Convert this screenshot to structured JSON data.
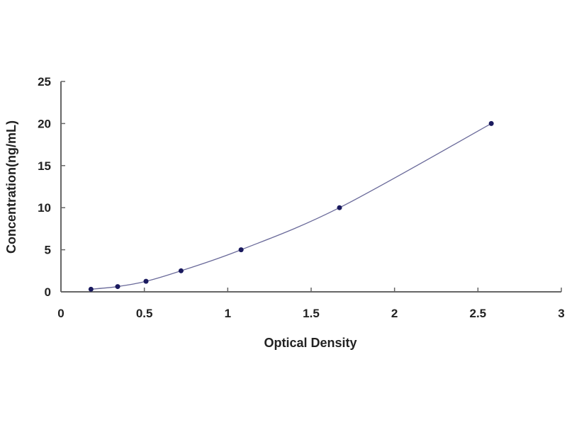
{
  "chart_data": {
    "type": "scatter",
    "title": "",
    "xlabel": "Optical Density",
    "ylabel": "Concentration(ng/mL)",
    "xlim": [
      0,
      3
    ],
    "ylim": [
      0,
      25
    ],
    "xticks": [
      "0",
      "0.5",
      "1",
      "1.5",
      "2",
      "2.5",
      "3"
    ],
    "yticks": [
      "0",
      "5",
      "10",
      "15",
      "20",
      "25"
    ],
    "grid": false,
    "fit_line": true,
    "colors": {
      "points": "#1a1a5e",
      "line": "#6a6a9a",
      "axis": "#666666"
    },
    "points": [
      {
        "x": 0.18,
        "y": 0.31
      },
      {
        "x": 0.34,
        "y": 0.625
      },
      {
        "x": 0.51,
        "y": 1.25
      },
      {
        "x": 0.72,
        "y": 2.5
      },
      {
        "x": 1.08,
        "y": 5
      },
      {
        "x": 1.67,
        "y": 10
      },
      {
        "x": 2.58,
        "y": 20
      }
    ]
  }
}
